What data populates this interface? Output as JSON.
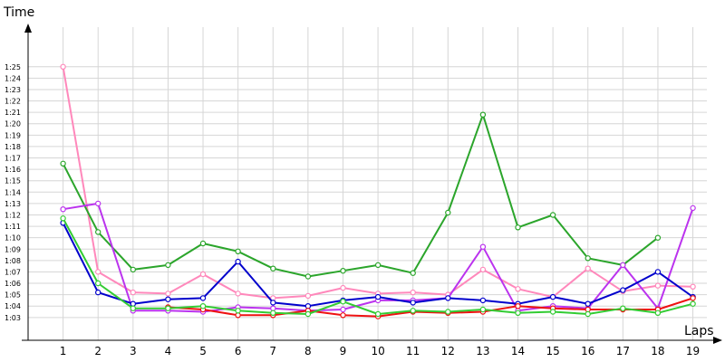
{
  "chart_data": {
    "type": "line",
    "title": "",
    "ylabel": "Time",
    "xlabel": "Laps",
    "x": [
      1,
      2,
      3,
      4,
      5,
      6,
      7,
      8,
      9,
      10,
      11,
      12,
      13,
      14,
      15,
      16,
      17,
      18,
      19
    ],
    "ylim_seconds": [
      61.0,
      88.0
    ],
    "xlim": [
      0.0,
      19.4
    ],
    "y_ticks": [
      "1:03",
      "1:04",
      "1:05",
      "1:06",
      "1:07",
      "1:08",
      "1:09",
      "1:10",
      "1:11",
      "1:12",
      "1:13",
      "1:14",
      "1:15",
      "1:16",
      "1:17",
      "1:18",
      "1:19",
      "1:20",
      "1:21",
      "1:22",
      "1:23",
      "1:24",
      "1:25"
    ],
    "grid": true,
    "legend": "none",
    "series": [
      {
        "color": "#ff88bb",
        "values": [
          "1:25.0",
          "1:07.0",
          "1:05.2",
          "1:05.1",
          "1:06.8",
          "1:05.1",
          "1:04.7",
          "1:04.9",
          "1:05.6",
          "1:05.1",
          "1:05.2",
          "1:05.0",
          "1:07.2",
          "1:05.5",
          "1:04.8",
          "1:07.3",
          "1:05.3",
          "1:05.8",
          "1:05.7"
        ]
      },
      {
        "color": "#2ba52b",
        "values": [
          "1:16.5",
          "1:10.5",
          "1:07.2",
          "1:07.6",
          "1:09.5",
          "1:08.8",
          "1:07.3",
          "1:06.6",
          "1:07.1",
          "1:07.6",
          "1:06.9",
          "1:12.2",
          "1:20.8",
          "1:10.9",
          "1:12.0",
          "1:08.2",
          "1:07.6",
          "1:10.0",
          null
        ]
      },
      {
        "color": "#bb33ee",
        "values": [
          "1:12.5",
          "1:13.0",
          "1:03.6",
          "1:03.6",
          "1:03.5",
          "1:03.9",
          "1:03.8",
          "1:03.6",
          "1:03.7",
          "1:04.5",
          "1:04.5",
          "1:04.7",
          "1:09.2",
          "1:03.6",
          "1:04.0",
          "1:03.8",
          "1:07.6",
          "1:03.8",
          "1:12.6"
        ]
      },
      {
        "color": "#0000cc",
        "values": [
          "1:11.3",
          "1:05.2",
          "1:04.2",
          "1:04.6",
          "1:04.7",
          "1:07.9",
          "1:04.3",
          "1:04.0",
          "1:04.5",
          "1:04.8",
          "1:04.3",
          "1:04.7",
          "1:04.5",
          "1:04.2",
          "1:04.8",
          "1:04.2",
          "1:05.4",
          "1:07.0",
          "1:04.8"
        ]
      },
      {
        "color": "#ee1111",
        "values": [
          null,
          null,
          null,
          "1:03.9",
          "1:03.7",
          "1:03.2",
          "1:03.2",
          "1:03.6",
          "1:03.2",
          "1:03.1",
          "1:03.5",
          "1:03.4",
          "1:03.5",
          "1:04.0",
          "1:03.8",
          "1:03.7",
          "1:03.7",
          "1:03.7",
          "1:04.7"
        ]
      },
      {
        "color": "#33cc33",
        "values": [
          "1:11.7",
          "1:06.0",
          "1:03.8",
          "1:03.8",
          "1:04.0",
          "1:03.6",
          "1:03.4",
          "1:03.3",
          "1:04.4",
          "1:03.3",
          "1:03.6",
          "1:03.5",
          "1:03.7",
          "1:03.4",
          "1:03.5",
          "1:03.3",
          "1:03.8",
          "1:03.4",
          "1:04.2"
        ]
      }
    ]
  }
}
